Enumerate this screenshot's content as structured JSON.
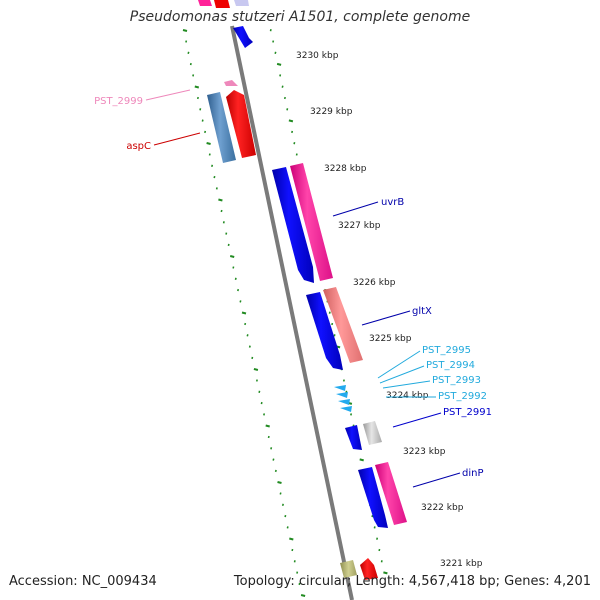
{
  "title": "Pseudomonas stutzeri A1501, complete genome",
  "footer": {
    "accession": "Accession: NC_009434",
    "topology": "Topology: circular; Length: 4,567,418 bp; Genes: 4,201"
  },
  "colors": {
    "forward_gene": "#0000ee",
    "reverse_gene_pink": "#ff2299",
    "reverse_gene_salmon": "#f08080",
    "red_gene": "#ee0000",
    "steel_gene": "#4682b4",
    "small_cyan": "#22aaee",
    "grey_gene": "#bbbbbb",
    "backbone": "#808080",
    "tick_green": "#228b22"
  },
  "scale_labels": [
    {
      "kbp": 3230,
      "label": "3230 kbp"
    },
    {
      "kbp": 3229,
      "label": "3229 kbp"
    },
    {
      "kbp": 3228,
      "label": "3228 kbp"
    },
    {
      "kbp": 3227,
      "label": "3227 kbp"
    },
    {
      "kbp": 3226,
      "label": "3226 kbp"
    },
    {
      "kbp": 3225,
      "label": "3225 kbp"
    },
    {
      "kbp": 3224,
      "label": "3224 kbp"
    },
    {
      "kbp": 3223,
      "label": "3223 kbp"
    },
    {
      "kbp": 3222,
      "label": "3222 kbp"
    },
    {
      "kbp": 3221,
      "label": "3221 kbp"
    }
  ],
  "gene_labels": [
    {
      "name": "PST_2999",
      "color": "#ee88bb"
    },
    {
      "name": "aspC",
      "color": "#cc0000"
    },
    {
      "name": "uvrB",
      "color": "#0000aa"
    },
    {
      "name": "gltX",
      "color": "#0000aa"
    },
    {
      "name": "PST_2995",
      "color": "#22aadd"
    },
    {
      "name": "PST_2994",
      "color": "#22aadd"
    },
    {
      "name": "PST_2993",
      "color": "#22aadd"
    },
    {
      "name": "PST_2992",
      "color": "#22aadd"
    },
    {
      "name": "PST_2991",
      "color": "#0000cc"
    },
    {
      "name": "dinP",
      "color": "#0000aa"
    }
  ]
}
